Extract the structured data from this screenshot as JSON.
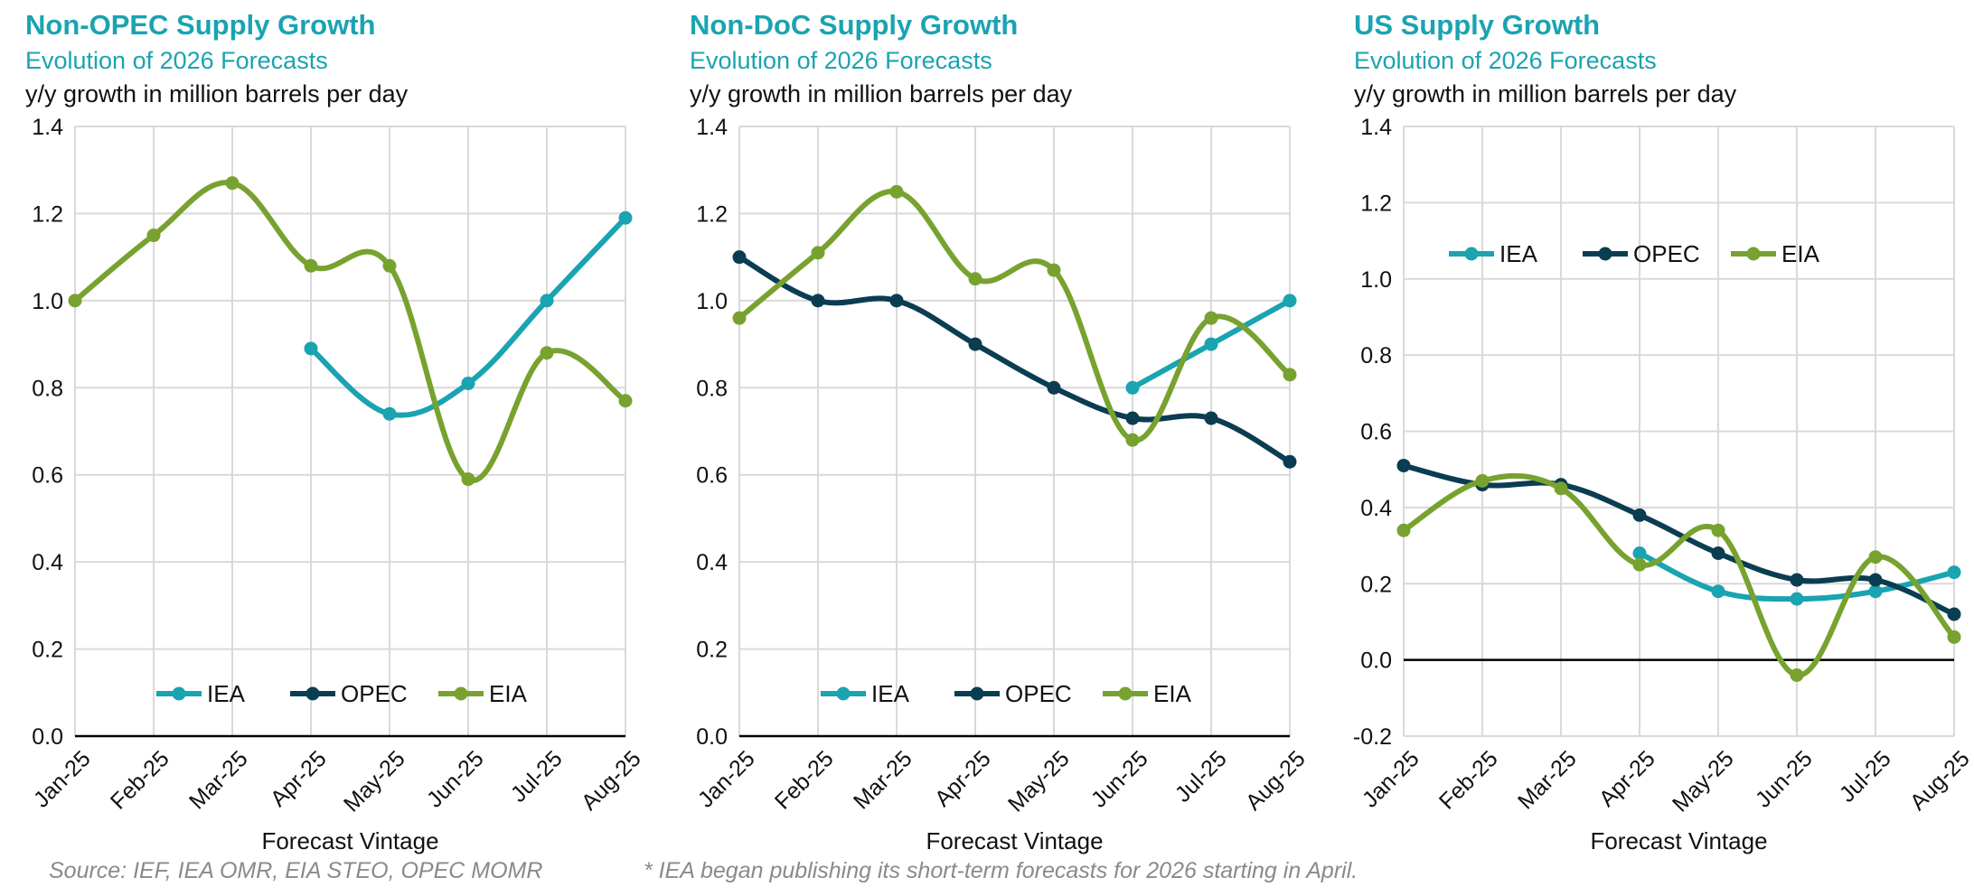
{
  "colors": {
    "IEA": "#1aa3b1",
    "OPEC": "#0b3d52",
    "EIA": "#78a22f",
    "title": "#1aa3b1"
  },
  "chart_data": [
    {
      "type": "line",
      "title": "Non-OPEC Supply Growth",
      "subtitle": "Evolution of 2026 Forecasts",
      "unit": "y/y growth in million barrels per day",
      "xlabel": "Forecast Vintage",
      "categories": [
        "Jan-25",
        "Feb-25",
        "Mar-25",
        "Apr-25",
        "May-25",
        "Jun-25",
        "Jul-25",
        "Aug-25"
      ],
      "ylim": [
        0.0,
        1.4
      ],
      "yticks": [
        "0.0",
        "0.2",
        "0.4",
        "0.6",
        "0.8",
        "1.0",
        "1.2",
        "1.4"
      ],
      "legend": [
        "IEA",
        "OPEC",
        "EIA"
      ],
      "series": [
        {
          "name": "IEA",
          "values": [
            null,
            null,
            null,
            0.89,
            0.74,
            0.81,
            1.0,
            1.19
          ]
        },
        {
          "name": "OPEC",
          "values": [
            null,
            null,
            null,
            null,
            null,
            null,
            null,
            null
          ]
        },
        {
          "name": "EIA",
          "values": [
            1.0,
            1.15,
            1.27,
            1.08,
            1.08,
            0.59,
            0.88,
            0.77
          ]
        }
      ]
    },
    {
      "type": "line",
      "title": "Non-DoC Supply Growth",
      "subtitle": "Evolution of 2026 Forecasts",
      "unit": "y/y growth in million barrels per day",
      "xlabel": "Forecast Vintage",
      "categories": [
        "Jan-25",
        "Feb-25",
        "Mar-25",
        "Apr-25",
        "May-25",
        "Jun-25",
        "Jul-25",
        "Aug-25"
      ],
      "ylim": [
        0.0,
        1.4
      ],
      "yticks": [
        "0.0",
        "0.2",
        "0.4",
        "0.6",
        "0.8",
        "1.0",
        "1.2",
        "1.4"
      ],
      "legend": [
        "IEA",
        "OPEC",
        "EIA"
      ],
      "series": [
        {
          "name": "IEA",
          "values": [
            null,
            null,
            null,
            null,
            null,
            0.8,
            0.9,
            1.0
          ]
        },
        {
          "name": "OPEC",
          "values": [
            1.1,
            1.0,
            1.0,
            0.9,
            0.8,
            0.73,
            0.73,
            0.63
          ]
        },
        {
          "name": "EIA",
          "values": [
            0.96,
            1.11,
            1.25,
            1.05,
            1.07,
            0.68,
            0.96,
            0.83
          ]
        }
      ]
    },
    {
      "type": "line",
      "title": "US Supply Growth",
      "subtitle": "Evolution of 2026 Forecasts",
      "unit": "y/y growth in million barrels per day",
      "xlabel": "Forecast Vintage",
      "categories": [
        "Jan-25",
        "Feb-25",
        "Mar-25",
        "Apr-25",
        "May-25",
        "Jun-25",
        "Jul-25",
        "Aug-25"
      ],
      "ylim": [
        -0.2,
        1.4
      ],
      "yticks": [
        "-0.2",
        "0.0",
        "0.2",
        "0.4",
        "0.6",
        "0.8",
        "1.0",
        "1.2",
        "1.4"
      ],
      "legend": [
        "IEA",
        "OPEC",
        "EIA"
      ],
      "series": [
        {
          "name": "IEA",
          "values": [
            null,
            null,
            null,
            0.28,
            0.18,
            0.16,
            0.18,
            0.23
          ]
        },
        {
          "name": "OPEC",
          "values": [
            0.51,
            0.46,
            0.46,
            0.38,
            0.28,
            0.21,
            0.21,
            0.12
          ]
        },
        {
          "name": "EIA",
          "values": [
            0.34,
            0.47,
            0.45,
            0.25,
            0.34,
            -0.04,
            0.27,
            0.06
          ]
        }
      ]
    }
  ],
  "footer": {
    "source": "Source: IEF, IEA OMR, EIA STEO, OPEC MOMR",
    "note": "* IEA began publishing its short-term forecasts for 2026 starting in April."
  }
}
